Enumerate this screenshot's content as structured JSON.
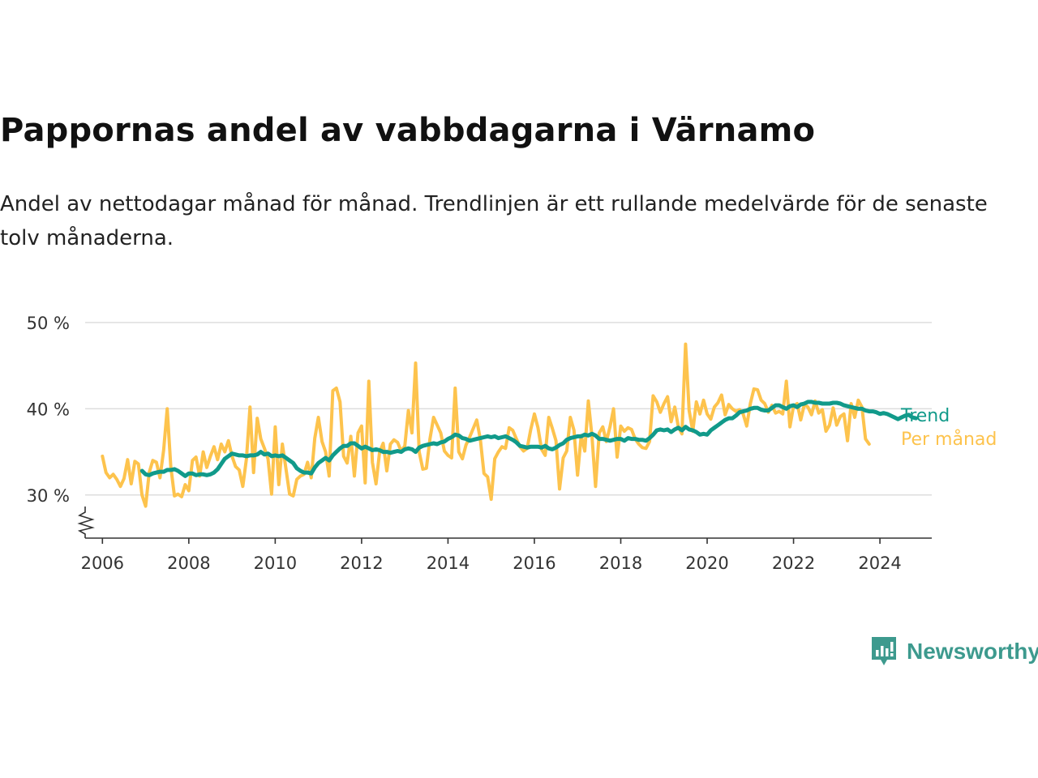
{
  "title": "Pappornas andel av vabbdagarna i Värnamo",
  "subtitle": "Andel av nettodagar månad för månad. Trendlinjen är ett rullande medelvärde för de senaste tolv månaderna.",
  "brand": "Newsworthy",
  "chart_data": {
    "type": "line",
    "x_range": [
      2005.6,
      2025.2
    ],
    "y_range": [
      25,
      50
    ],
    "y_ticks": [
      30,
      40,
      50
    ],
    "y_tick_labels": [
      "30 %",
      "40 %",
      "50 %"
    ],
    "x_ticks": [
      2006,
      2008,
      2010,
      2012,
      2014,
      2016,
      2018,
      2020,
      2022,
      2024
    ],
    "y_axis_break": true,
    "grid": true,
    "colors": {
      "trend": "#119a8a",
      "monthly": "#fdc34d",
      "grid": "#dddddd",
      "axis": "#333333"
    },
    "series": [
      {
        "name": "Per månad",
        "x_start": 2006.0,
        "step": 0.083333,
        "values": [
          34.5,
          32.6,
          32.0,
          32.4,
          31.8,
          31.0,
          31.9,
          34.1,
          31.3,
          33.9,
          33.6,
          30.0,
          28.7,
          32.6,
          34.0,
          33.8,
          32.0,
          35.2,
          40.0,
          33.3,
          29.9,
          30.1,
          29.8,
          31.2,
          30.5,
          34.0,
          34.4,
          32.2,
          35.0,
          33.2,
          34.5,
          35.6,
          34.1,
          35.9,
          35.0,
          36.3,
          34.5,
          33.3,
          32.9,
          31.0,
          34.2,
          40.2,
          32.6,
          38.9,
          36.5,
          35.4,
          34.2,
          30.1,
          37.9,
          31.2,
          35.9,
          33.0,
          30.1,
          29.9,
          31.8,
          32.2,
          32.4,
          33.8,
          32.0,
          36.6,
          39.0,
          36.2,
          35.0,
          32.2,
          42.1,
          42.4,
          40.8,
          34.5,
          33.7,
          36.8,
          32.2,
          37.2,
          38.0,
          31.4,
          43.2,
          33.8,
          31.3,
          35.0,
          36.0,
          32.8,
          35.9,
          36.4,
          36.1,
          35.1,
          35.7,
          39.8,
          37.2,
          45.3,
          35.0,
          33.0,
          33.1,
          36.5,
          39.0,
          38.1,
          37.2,
          35.1,
          34.6,
          34.3,
          42.4,
          35.0,
          34.2,
          35.8,
          36.7,
          37.7,
          38.7,
          36.4,
          32.5,
          32.1,
          29.5,
          34.2,
          35.0,
          35.6,
          35.4,
          37.8,
          37.5,
          36.5,
          35.6,
          35.1,
          35.4,
          37.6,
          39.4,
          37.8,
          35.3,
          34.6,
          39.0,
          37.7,
          36.3,
          30.7,
          34.3,
          35.1,
          39.0,
          37.5,
          32.3,
          36.9,
          35.1,
          40.9,
          36.8,
          31.0,
          37.2,
          37.9,
          36.2,
          37.9,
          40.0,
          34.4,
          38.0,
          37.4,
          37.8,
          37.6,
          36.5,
          35.9,
          35.5,
          35.4,
          36.2,
          41.5,
          40.8,
          39.6,
          40.6,
          41.4,
          38.5,
          40.2,
          37.9,
          37.1,
          47.5,
          39.8,
          37.4,
          40.8,
          39.4,
          41.0,
          39.4,
          38.8,
          40.2,
          40.7,
          41.6,
          39.3,
          40.5,
          40.0,
          39.7,
          39.9,
          39.4,
          38.0,
          40.6,
          42.3,
          42.2,
          41.0,
          40.6,
          39.6,
          40.4,
          39.5,
          39.7,
          39.4,
          43.2,
          37.9,
          40.3,
          40.6,
          38.7,
          40.5,
          40.2,
          39.3,
          40.9,
          39.5,
          39.9,
          37.4,
          38.1,
          40.1,
          38.1,
          39.1,
          39.4,
          36.3,
          40.6,
          39.0,
          41.0,
          40.2,
          36.5,
          35.9
        ]
      },
      {
        "name": "Trend",
        "x_start": 2006.917,
        "step": 0.083333,
        "values": [
          32.8,
          32.4,
          32.3,
          32.5,
          32.6,
          32.7,
          32.7,
          32.9,
          32.9,
          33.0,
          32.8,
          32.5,
          32.2,
          32.5,
          32.5,
          32.3,
          32.4,
          32.4,
          32.3,
          32.4,
          32.6,
          33.0,
          33.6,
          34.2,
          34.5,
          34.8,
          34.7,
          34.6,
          34.6,
          34.5,
          34.6,
          34.6,
          34.7,
          35.0,
          34.7,
          34.8,
          34.5,
          34.6,
          34.5,
          34.6,
          34.3,
          34.0,
          33.7,
          33.1,
          32.8,
          32.6,
          32.6,
          32.5,
          33.2,
          33.7,
          34.0,
          34.3,
          34.0,
          34.6,
          35.0,
          35.4,
          35.7,
          35.7,
          36.0,
          36.0,
          35.7,
          35.4,
          35.6,
          35.4,
          35.2,
          35.3,
          35.2,
          35.0,
          35.0,
          34.9,
          35.0,
          35.1,
          35.0,
          35.3,
          35.4,
          35.3,
          35.0,
          35.5,
          35.7,
          35.8,
          35.9,
          36.0,
          35.9,
          36.1,
          36.2,
          36.5,
          36.7,
          37.0,
          36.9,
          36.6,
          36.5,
          36.3,
          36.4,
          36.5,
          36.6,
          36.7,
          36.8,
          36.7,
          36.8,
          36.6,
          36.7,
          36.8,
          36.6,
          36.4,
          36.1,
          35.7,
          35.6,
          35.5,
          35.6,
          35.6,
          35.6,
          35.5,
          35.7,
          35.4,
          35.3,
          35.5,
          35.8,
          36.0,
          36.4,
          36.6,
          36.7,
          36.8,
          36.8,
          37.0,
          36.9,
          37.1,
          36.9,
          36.5,
          36.5,
          36.4,
          36.3,
          36.4,
          36.5,
          36.5,
          36.3,
          36.6,
          36.5,
          36.5,
          36.4,
          36.4,
          36.3,
          36.6,
          37.0,
          37.5,
          37.6,
          37.5,
          37.6,
          37.3,
          37.6,
          37.8,
          37.5,
          37.9,
          37.6,
          37.5,
          37.3,
          37.0,
          37.1,
          37.0,
          37.5,
          37.8,
          38.1,
          38.4,
          38.7,
          38.9,
          38.9,
          39.2,
          39.6,
          39.7,
          39.8,
          40.0,
          40.1,
          40.1,
          39.9,
          39.8,
          39.8,
          40.1,
          40.4,
          40.4,
          40.2,
          40.0,
          40.3,
          40.4,
          40.2,
          40.5,
          40.6,
          40.8,
          40.8,
          40.7,
          40.7,
          40.6,
          40.6,
          40.6,
          40.7,
          40.7,
          40.6,
          40.4,
          40.3,
          40.2,
          40.1,
          40.0,
          40.0,
          39.8,
          39.7,
          39.7,
          39.6,
          39.4,
          39.5,
          39.4,
          39.2,
          39.0,
          38.8,
          39.0,
          39.2,
          39.3,
          39.0,
          38.9
        ]
      }
    ]
  }
}
